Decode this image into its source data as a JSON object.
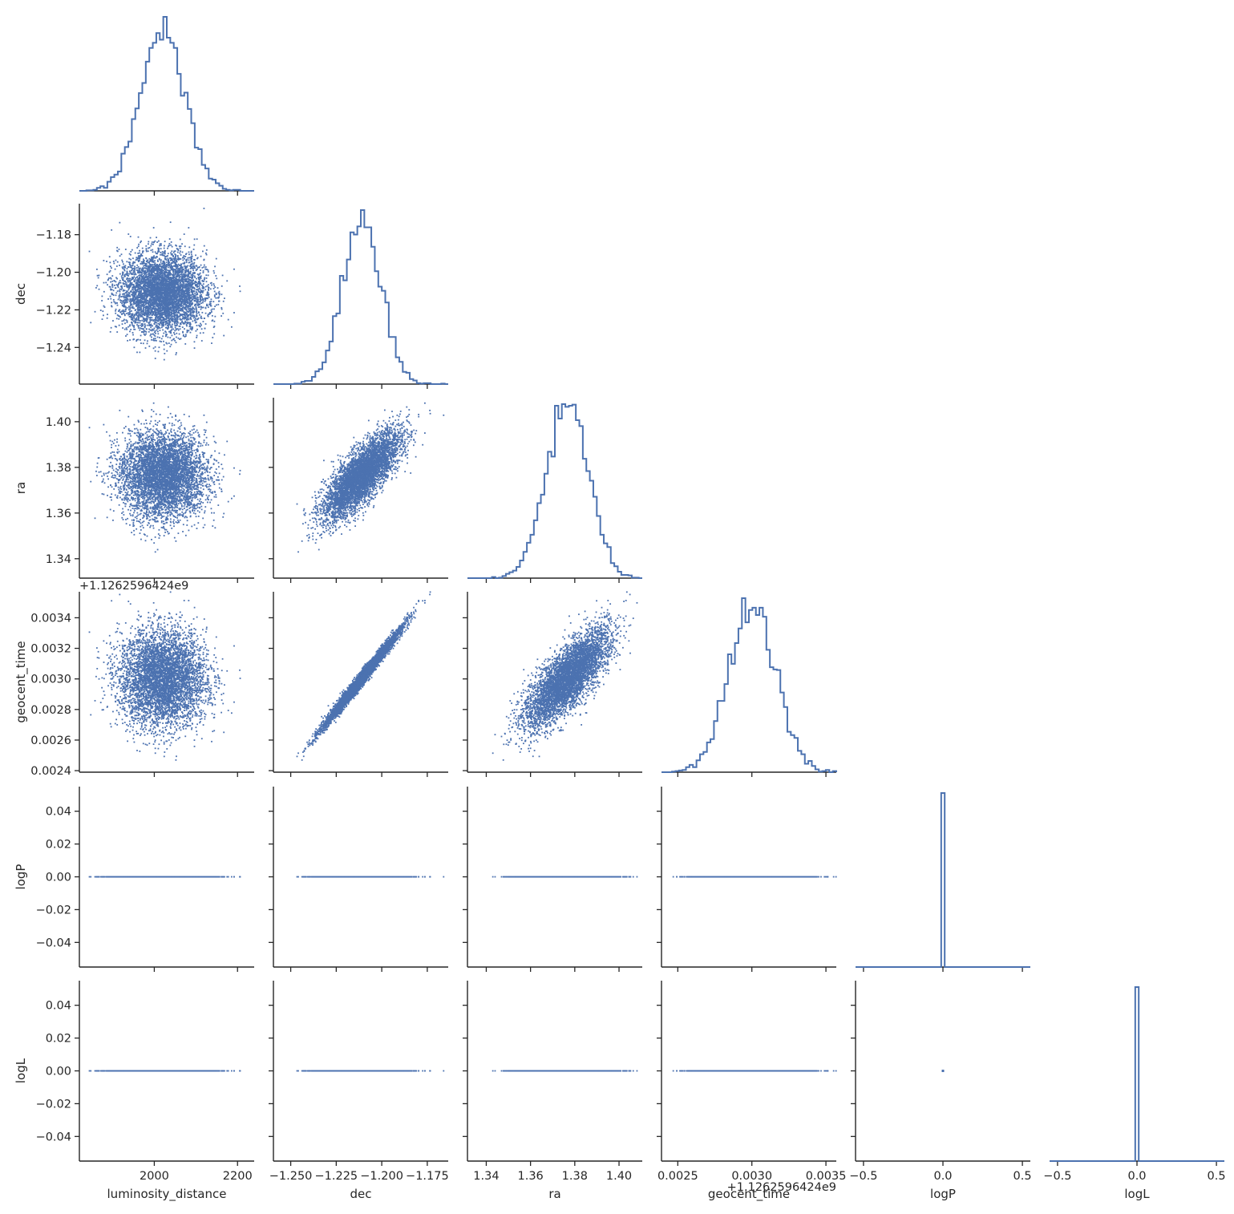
{
  "chart_data": {
    "type": "scatter",
    "title": "",
    "parameters": [
      "luminosity_distance",
      "dec",
      "ra",
      "geocent_time",
      "logP",
      "logL"
    ],
    "axis_labels": {
      "luminosity_distance": "luminosity_distance",
      "dec": "dec",
      "ra": "ra",
      "geocent_time": "geocent_time",
      "logP": "logP",
      "logL": "logL"
    },
    "geocent_time_offset_label": "+1.1262596424e9",
    "ranges": {
      "luminosity_distance": [
        1820,
        2240
      ],
      "dec": [
        -1.2595,
        -1.1635
      ],
      "ra": [
        1.3315,
        1.4105
      ],
      "geocent_time": [
        0.00239,
        0.00357
      ],
      "logP": [
        -0.055,
        0.055
      ],
      "logL": [
        -0.055,
        0.055
      ]
    },
    "ticks": {
      "luminosity_distance": [
        2000,
        2200
      ],
      "dec": [
        -1.25,
        -1.225,
        -1.2,
        -1.175
      ],
      "ra": [
        1.34,
        1.36,
        1.38,
        1.4
      ],
      "geocent_time": [
        0.0025,
        0.003,
        0.0035
      ],
      "logP": [
        -0.04,
        -0.02,
        0.0,
        0.02,
        0.04
      ],
      "logL": [
        -0.04,
        -0.02,
        0.0,
        0.02,
        0.04
      ]
    },
    "diag_ticks": {
      "logP": [
        -0.5,
        0.0,
        0.5
      ],
      "logL": [
        -0.5,
        0.0,
        0.5
      ]
    },
    "x_tick_labels": {
      "luminosity_distance": [
        "2000",
        "2200"
      ],
      "dec": [
        "−1.250",
        "−1.225",
        "−1.200",
        "−1.175"
      ],
      "ra": [
        "1.34",
        "1.36",
        "1.38",
        "1.40"
      ],
      "geocent_time": [
        "0.0025",
        "0.0030",
        "0.0035"
      ],
      "logP": [
        "−0.5",
        "0.0",
        "0.5"
      ],
      "logL": [
        "−0.5",
        "0.0",
        "0.5"
      ]
    },
    "y_tick_labels": {
      "dec": [
        "−1.24",
        "−1.22",
        "−1.20",
        "−1.18"
      ],
      "ra": [
        "1.34",
        "1.36",
        "1.38",
        "1.40"
      ],
      "geocent_time": [
        "0.0024",
        "0.0026",
        "0.0028",
        "0.0030",
        "0.0032",
        "0.0034"
      ],
      "logP": [
        "−0.04",
        "−0.02",
        "0.00",
        "0.02",
        "0.04"
      ],
      "logL": [
        "−0.04",
        "−0.02",
        "0.00",
        "0.02",
        "0.04"
      ]
    },
    "y_ticks": {
      "dec": [
        -1.24,
        -1.22,
        -1.2,
        -1.18
      ],
      "ra": [
        1.34,
        1.36,
        1.38,
        1.4
      ],
      "geocent_time": [
        0.0024,
        0.0026,
        0.0028,
        0.003,
        0.0032,
        0.0034
      ],
      "logP": [
        -0.04,
        -0.02,
        0.0,
        0.02,
        0.04
      ],
      "logL": [
        -0.04,
        -0.02,
        0.0,
        0.02,
        0.04
      ]
    },
    "distributions": {
      "luminosity_distance": {
        "mean": 2020,
        "sd": 52
      },
      "dec": {
        "mean": -1.211,
        "sd": 0.0105
      },
      "ra": {
        "mean": 1.3765,
        "sd": 0.0095
      },
      "geocent_time": {
        "mean": 0.003002,
        "sd": 0.000158
      },
      "logP": {
        "value": 0.0
      },
      "logL": {
        "value": 0.0
      }
    },
    "correlations": {
      "dec_ra": 0.78,
      "dec_geocent_time": 0.99,
      "ra_geocent_time": 0.74
    },
    "n_samples": 5000,
    "grid": false,
    "legend": "none",
    "colors": {
      "series": "#4c72b0",
      "axes": "#262626"
    }
  }
}
